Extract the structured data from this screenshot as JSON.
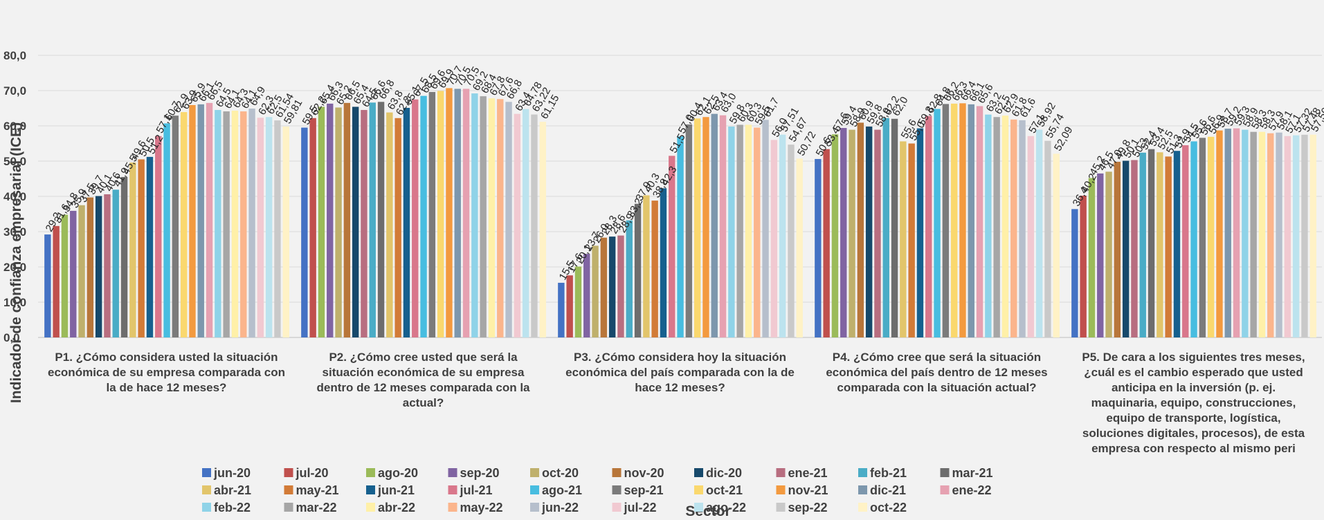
{
  "chart_data": {
    "type": "bar",
    "xlabel": "Sector",
    "ylabel": "Indicador de confianza empresarial (ICE)",
    "ylim": [
      0,
      80
    ],
    "yticks": [
      "0,0",
      "10,0",
      "20,0",
      "30,0",
      "40,0",
      "50,0",
      "60,0",
      "70,0",
      "80,0"
    ],
    "grid": true,
    "legend_position": "bottom",
    "categories": [
      [
        "P1. ¿Cómo considera usted la situación",
        "económica de su empresa comparada con",
        "la de hace 12 meses?"
      ],
      [
        "P2. ¿Cómo cree usted que será la",
        "situación económica de su empresa",
        "dentro de 12 meses comparada con la",
        "actual?"
      ],
      [
        "P3. ¿Cómo considera hoy la situación",
        "económica del país comparada con la de",
        "hace 12 meses?"
      ],
      [
        "P4. ¿Cómo cree que será la situación",
        "económica del país dentro de 12 meses",
        "comparada con la situación actual?"
      ],
      [
        "P5. De cara a los siguientes tres meses,",
        "¿cuál es el cambio esperado que usted",
        "anticipa en la inversión (p. ej.",
        "maquinaria, equipo, construcciones,",
        "equipo de transporte, logística,",
        "soluciones digitales, procesos), de esta",
        "empresa con respecto al mismo peri"
      ]
    ],
    "series": [
      {
        "name": "jun-20",
        "color": "#4472c4",
        "values": [
          29.2,
          59.5,
          15.5,
          50.6,
          36.4
        ],
        "labels": [
          "29,2",
          "59,5",
          "15,5",
          "50,6",
          "36,4"
        ]
      },
      {
        "name": "jul-20",
        "color": "#c0504d",
        "values": [
          31.6,
          62.2,
          17.6,
          53.4,
          40.2
        ],
        "labels": [
          "31,6",
          "62,2",
          "17,6",
          "53,4",
          "40,2"
        ]
      },
      {
        "name": "ago-20",
        "color": "#9bbb59",
        "values": [
          34.8,
          65.4,
          20.1,
          57.6,
          45.2
        ],
        "labels": [
          "34,8",
          "65,4",
          "20,1",
          "57,6",
          "45,2"
        ]
      },
      {
        "name": "sep-20",
        "color": "#8064a2",
        "values": [
          35.9,
          66.3,
          23.7,
          59.4,
          46.5
        ],
        "labels": [
          "35,9",
          "66,3",
          "23,7",
          "59,4",
          "46,5"
        ]
      },
      {
        "name": "oct-20",
        "color": "#bfb06c",
        "values": [
          37.5,
          65.2,
          26.0,
          58.9,
          47.0
        ],
        "labels": [
          "37,5",
          "65,2",
          "26,0",
          "58,9",
          "47,0"
        ]
      },
      {
        "name": "nov-20",
        "color": "#b8763a",
        "values": [
          39.7,
          66.5,
          28.3,
          60.9,
          49.8
        ],
        "labels": [
          "39,7",
          "66,5",
          "28,3",
          "60,9",
          "49,8"
        ]
      },
      {
        "name": "dic-20",
        "color": "#17496b",
        "values": [
          40.1,
          65.4,
          28.6,
          59.8,
          50.1
        ],
        "labels": [
          "40,1",
          "65,4",
          "28,6",
          "59,8",
          "50,1"
        ]
      },
      {
        "name": "ene-21",
        "color": "#b86e80",
        "values": [
          40.6,
          64.5,
          28.9,
          58.9,
          50.3
        ],
        "labels": [
          "40,6",
          "64,5",
          "28,9",
          "58,9",
          "50,3"
        ]
      },
      {
        "name": "feb-21",
        "color": "#4aacc6",
        "values": [
          41.9,
          66.6,
          33.2,
          62.2,
          52.4
        ],
        "labels": [
          "41,9",
          "66,6",
          "33,2",
          "62,2",
          "52,4"
        ]
      },
      {
        "name": "mar-21",
        "color": "#6d6d6d",
        "values": [
          45.5,
          66.8,
          37.9,
          62.0,
          53.4
        ],
        "labels": [
          "45,5",
          "66,8",
          "37,9",
          "62,0",
          "53,4"
        ]
      },
      {
        "name": "abr-21",
        "color": "#e2c56b",
        "values": [
          49.6,
          63.8,
          40.3,
          55.6,
          52.5
        ],
        "labels": [
          "49,6",
          "63,8",
          "40,3",
          "55,6",
          "52,5"
        ]
      },
      {
        "name": "may-21",
        "color": "#d27b37",
        "values": [
          50.5,
          62.2,
          38.8,
          55.0,
          51.3
        ],
        "labels": [
          "50,5",
          "62,2",
          "38,8",
          "55,0",
          "51,3"
        ]
      },
      {
        "name": "jun-21",
        "color": "#16608e",
        "values": [
          51.2,
          65.1,
          42.3,
          59.3,
          52.9
        ],
        "labels": [
          "51,2",
          "65,1",
          "42,3",
          "59,3",
          "52,9"
        ]
      },
      {
        "name": "jul-21",
        "color": "#d9778b",
        "values": [
          57.1,
          67.5,
          51.5,
          62.8,
          54.5
        ],
        "labels": [
          "57,1",
          "67,5",
          "51,5",
          "62,8",
          "54,5"
        ]
      },
      {
        "name": "ago-21",
        "color": "#48bde0",
        "values": [
          60.7,
          68.5,
          57.0,
          64.8,
          55.6
        ],
        "labels": [
          "60,7",
          "68,5",
          "57,0",
          "64,8",
          "55,6"
        ]
      },
      {
        "name": "sep-21",
        "color": "#7b7b7b",
        "values": [
          62.9,
          69.6,
          60.4,
          66.2,
          56.6
        ],
        "labels": [
          "62,9",
          "69,6",
          "60,4",
          "66,2",
          "56,6"
        ]
      },
      {
        "name": "oct-21",
        "color": "#fad86e",
        "values": [
          63.9,
          69.9,
          62.1,
          66.3,
          56.9
        ],
        "labels": [
          "63,9",
          "69,9",
          "62,1",
          "66,3",
          "56,9"
        ]
      },
      {
        "name": "nov-21",
        "color": "#f39a3f",
        "values": [
          65.9,
          70.7,
          62.5,
          66.4,
          58.7
        ],
        "labels": [
          "65,9",
          "70,7",
          "62,5",
          "66,4",
          "58,7"
        ]
      },
      {
        "name": "dic-21",
        "color": "#7d97ad",
        "values": [
          66.1,
          70.5,
          63.4,
          66.1,
          59.2
        ],
        "labels": [
          "66,1",
          "70,5",
          "63,4",
          "66,1",
          "59,2"
        ]
      },
      {
        "name": "ene-22",
        "color": "#e6a1b1",
        "values": [
          66.5,
          70.5,
          63.0,
          65.6,
          59.3
        ],
        "labels": [
          "66,5",
          "70,5",
          "63,0",
          "65,6",
          "59,3"
        ]
      },
      {
        "name": "feb-22",
        "color": "#8fd3e8",
        "values": [
          64.5,
          69.2,
          59.8,
          63.2,
          58.9
        ],
        "labels": [
          "64,5",
          "69,2",
          "59,8",
          "63,2",
          "58,9"
        ]
      },
      {
        "name": "mar-22",
        "color": "#a6a6a6",
        "values": [
          64.1,
          68.4,
          60.3,
          62.5,
          58.3
        ],
        "labels": [
          "64,1",
          "68,4",
          "60,3",
          "62,5",
          "58,3"
        ]
      },
      {
        "name": "abr-22",
        "color": "#fff0a8",
        "values": [
          64.3,
          67.8,
          60.3,
          62.9,
          58.3
        ],
        "labels": [
          "64,3",
          "67,8",
          "60,3",
          "62,9",
          "58,3"
        ]
      },
      {
        "name": "may-22",
        "color": "#fbb58c",
        "values": [
          64.1,
          67.6,
          59.5,
          61.8,
          57.9
        ],
        "labels": [
          "64,1",
          "67,6",
          "59,5",
          "61,8",
          "57,9"
        ]
      },
      {
        "name": "jun-22",
        "color": "#b6bfcc",
        "values": [
          64.9,
          66.8,
          61.7,
          61.6,
          58.1
        ],
        "labels": [
          "64,9",
          "66,8",
          "61,7",
          "61,6",
          "58,1"
        ]
      },
      {
        "name": "jul-22",
        "color": "#f1c9d1",
        "values": [
          62.3,
          63.4,
          56.0,
          57.1,
          57.1
        ],
        "labels": [
          "62,3",
          "63,4",
          "56,0",
          "57,1",
          "57,1"
        ]
      },
      {
        "name": "ago-22",
        "color": "#bce3ee",
        "values": [
          62.5,
          64.78,
          57.51,
          58.92,
          57.32
        ],
        "labels": [
          "62,5",
          "64,78",
          "57,51",
          "58,92",
          "57,32"
        ]
      },
      {
        "name": "sep-22",
        "color": "#c9c9c9",
        "values": [
          61.54,
          63.22,
          54.67,
          55.74,
          57.48
        ],
        "labels": [
          "61,54",
          "63,22",
          "54,67",
          "55,74",
          "57,48"
        ]
      },
      {
        "name": "oct-22",
        "color": "#fff2c6",
        "values": [
          59.81,
          61.15,
          50.72,
          52.09,
          57.5
        ],
        "labels": [
          "59,81",
          "61,15",
          "50,72",
          "52,09",
          "57,50"
        ]
      }
    ]
  }
}
